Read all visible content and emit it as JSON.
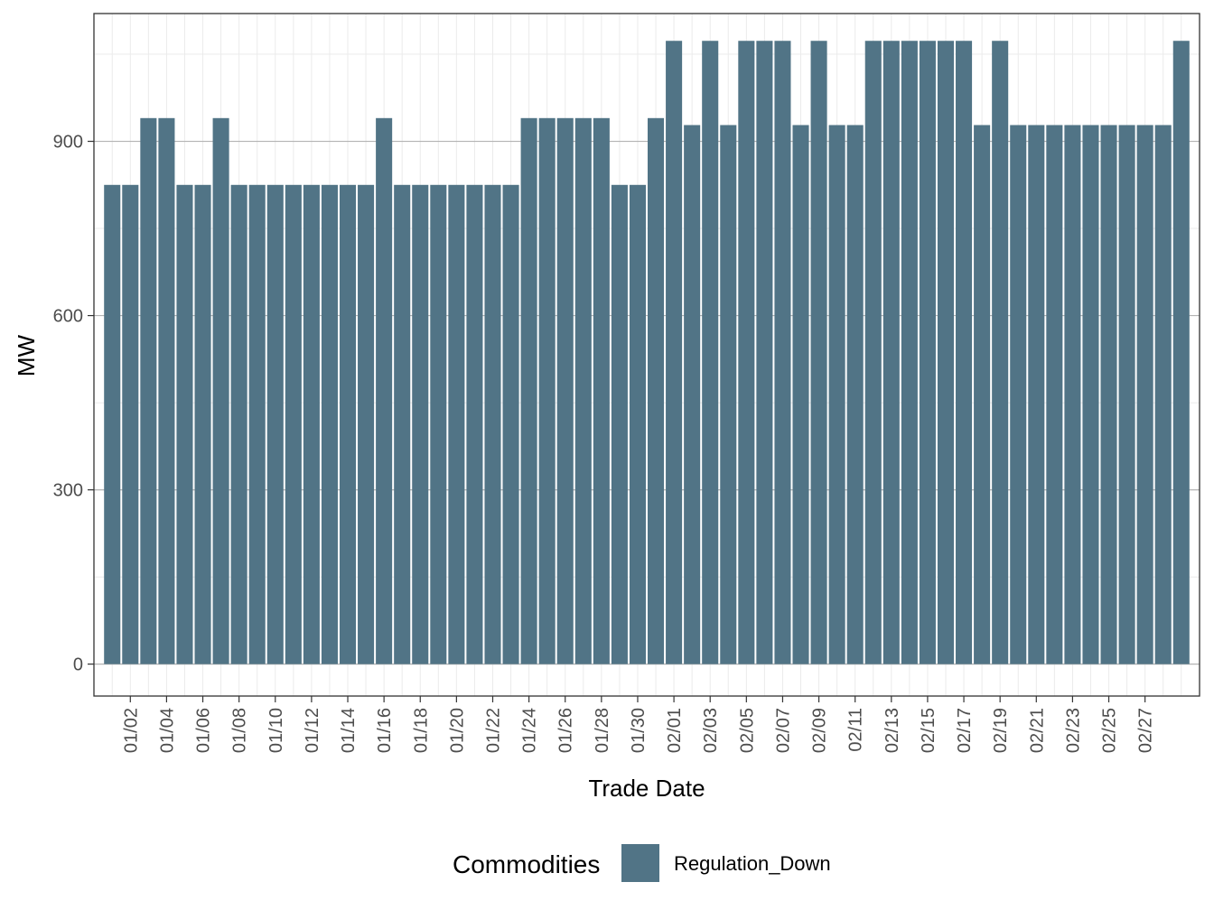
{
  "chart_data": {
    "type": "bar",
    "title": "",
    "xlabel": "Trade Date",
    "ylabel": "MW",
    "ylim": [
      -55,
      1120
    ],
    "yticks": [
      0,
      300,
      600,
      900
    ],
    "grid": true,
    "legend": {
      "title": "Commodities",
      "placement": "bottom"
    },
    "series": [
      {
        "name": "Regulation_Down",
        "color": "#517486",
        "values": [
          825,
          825,
          940,
          940,
          825,
          825,
          940,
          825,
          825,
          825,
          825,
          825,
          825,
          825,
          825,
          940,
          825,
          825,
          825,
          825,
          825,
          825,
          825,
          940,
          940,
          940,
          940,
          940,
          825,
          825,
          940,
          1073,
          928,
          1073,
          928,
          1073,
          1073,
          1073,
          928,
          1073,
          928,
          928,
          1073,
          1073,
          1073,
          1073,
          1073,
          1073,
          928,
          1073,
          928,
          928,
          928,
          928,
          928,
          928,
          928,
          928,
          928,
          1073
        ]
      }
    ],
    "categories": [
      "01/01",
      "01/02",
      "01/03",
      "01/04",
      "01/05",
      "01/06",
      "01/07",
      "01/08",
      "01/09",
      "01/10",
      "01/11",
      "01/12",
      "01/13",
      "01/14",
      "01/15",
      "01/16",
      "01/17",
      "01/18",
      "01/19",
      "01/20",
      "01/21",
      "01/22",
      "01/23",
      "01/24",
      "01/25",
      "01/26",
      "01/27",
      "01/28",
      "01/29",
      "01/30",
      "01/31",
      "02/01",
      "02/02",
      "02/03",
      "02/04",
      "02/05",
      "02/06",
      "02/07",
      "02/08",
      "02/09",
      "02/10",
      "02/11",
      "02/12",
      "02/13",
      "02/14",
      "02/15",
      "02/16",
      "02/17",
      "02/18",
      "02/19",
      "02/20",
      "02/21",
      "02/22",
      "02/23",
      "02/24",
      "02/25",
      "02/26",
      "02/27",
      "02/28",
      "02/29"
    ],
    "x_tick_labels": [
      "01/02",
      "01/04",
      "01/06",
      "01/08",
      "01/10",
      "01/12",
      "01/14",
      "01/16",
      "01/18",
      "01/20",
      "01/22",
      "01/24",
      "01/26",
      "01/28",
      "01/30",
      "02/01",
      "02/03",
      "02/05",
      "02/07",
      "02/09",
      "02/11",
      "02/13",
      "02/15",
      "02/17",
      "02/19",
      "02/21",
      "02/23",
      "02/25",
      "02/27"
    ]
  }
}
